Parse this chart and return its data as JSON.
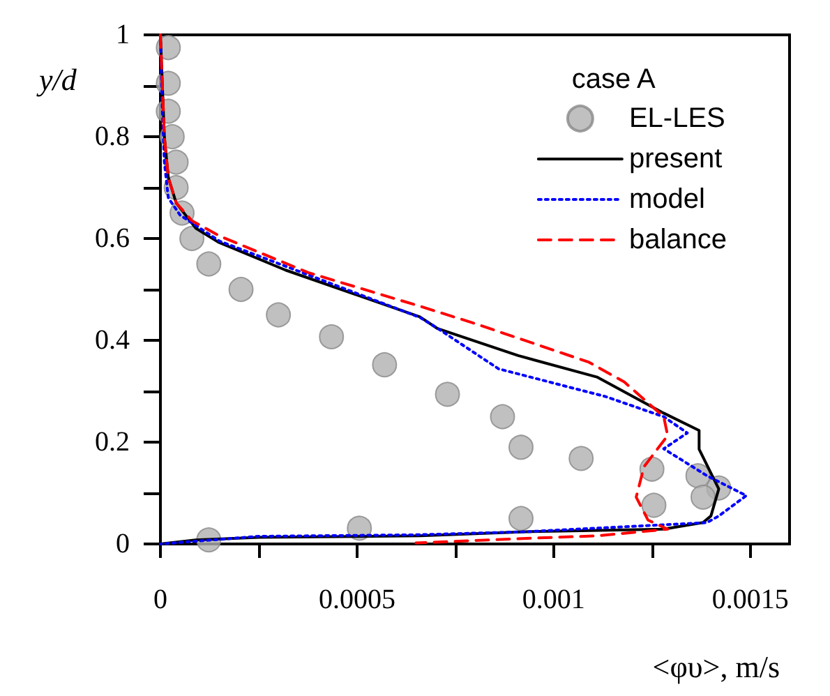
{
  "chart_data": {
    "type": "line",
    "xlabel": "<φυ>, m/s",
    "ylabel": "y/d",
    "legend_title": "case A",
    "legend": "top right",
    "xlim": [
      0,
      0.0016
    ],
    "ylim": [
      0,
      1
    ],
    "xticks": [
      0,
      {
        "value": 0.00025,
        "label": null
      },
      0.0005,
      {
        "value": 0.00075,
        "label": null
      },
      0.001,
      {
        "value": 0.00125,
        "label": null
      },
      0.0015
    ],
    "yticks": [
      0,
      {
        "value": 0.1,
        "label": null
      },
      0.2,
      {
        "value": 0.3,
        "label": null
      },
      0.4,
      {
        "value": 0.5,
        "label": null
      },
      0.6,
      {
        "value": 0.7,
        "label": null
      },
      0.8,
      {
        "value": 0.9,
        "label": null
      },
      1
    ],
    "series": [
      {
        "name": "EL-LES",
        "type": "scatter",
        "marker": "circle",
        "color": "#b0b0b0",
        "x": [
          2e-05,
          2e-05,
          2e-05,
          3e-05,
          4e-05,
          4e-05,
          5.5e-05,
          8e-05,
          0.000123,
          0.000205,
          0.0003,
          0.000435,
          0.00057,
          0.00073,
          0.00087,
          0.000917,
          0.00107,
          0.00125,
          0.001367,
          0.00142,
          0.00138,
          0.001255,
          0.000917,
          0.000506,
          0.000123
        ],
        "values": [
          0.975,
          0.905,
          0.85,
          0.8,
          0.75,
          0.7,
          0.65,
          0.6,
          0.55,
          0.5,
          0.45,
          0.407,
          0.352,
          0.294,
          0.25,
          0.19,
          0.168,
          0.147,
          0.134,
          0.11,
          0.092,
          0.076,
          0.05,
          0.031,
          0.008
        ]
      },
      {
        "name": "present",
        "line_style": "solid",
        "color": "#000000",
        "x": [
          0,
          5e-06,
          1e-05,
          2e-05,
          4e-05,
          9e-05,
          0.000147,
          0.000318,
          0.00066,
          0.000705,
          0.00091,
          0.00111,
          0.00128,
          0.00137,
          0.00137,
          0.00142,
          0.0014,
          0.00138,
          0.00128,
          0.00093,
          0.00066,
          0.00025,
          9e-05,
          0
        ],
        "values": [
          1,
          0.9,
          0.8,
          0.72,
          0.67,
          0.62,
          0.593,
          0.538,
          0.446,
          0.423,
          0.37,
          0.328,
          0.257,
          0.223,
          0.186,
          0.108,
          0.055,
          0.042,
          0.029,
          0.024,
          0.016,
          0.013,
          0.008,
          0
        ]
      },
      {
        "name": "model",
        "line_style": "dotted",
        "color": "#0000ff",
        "x": [
          0,
          5e-06,
          1e-05,
          2e-05,
          5e-05,
          0.00015,
          0.00032,
          0.00066,
          0.0007,
          0.00086,
          0.00113,
          0.00128,
          0.00134,
          0.00128,
          0.00139,
          0.00149,
          0.00142,
          0.00139,
          0.00093,
          0.00065,
          0.00025,
          0
        ],
        "values": [
          1,
          0.85,
          0.75,
          0.68,
          0.646,
          0.595,
          0.545,
          0.445,
          0.426,
          0.344,
          0.29,
          0.25,
          0.218,
          0.187,
          0.134,
          0.095,
          0.055,
          0.042,
          0.024,
          0.018,
          0.015,
          0
        ]
      },
      {
        "name": "balance",
        "line_style": "dashed",
        "color": "#ff0000",
        "x": [
          0,
          5e-06,
          1e-05,
          2e-05,
          4e-05,
          8e-05,
          0.00015,
          0.000376,
          0.00066,
          0.0008,
          0.00109,
          0.00118,
          0.00128,
          0.00129,
          0.00123,
          0.00121,
          0.00124,
          0.00129,
          0.00111,
          0.00093,
          0.00065
        ],
        "values": [
          1,
          0.9,
          0.8,
          0.72,
          0.67,
          0.635,
          0.605,
          0.533,
          0.467,
          0.433,
          0.357,
          0.318,
          0.25,
          0.213,
          0.152,
          0.092,
          0.047,
          0.029,
          0.016,
          0.011,
          0.002
        ]
      }
    ]
  }
}
